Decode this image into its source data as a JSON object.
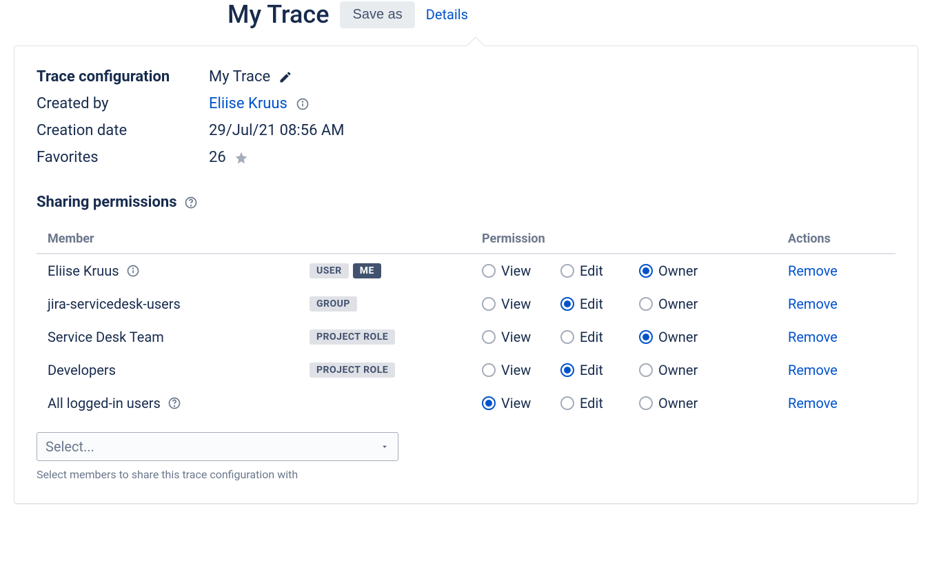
{
  "header": {
    "title": "My Trace",
    "save_as_label": "Save as",
    "details_label": "Details"
  },
  "config": {
    "heading": "Trace configuration",
    "name": "My Trace",
    "created_by_label": "Created by",
    "created_by_value": "Eliise Kruus",
    "creation_date_label": "Creation date",
    "creation_date_value": "29/Jul/21 08:56 AM",
    "favorites_label": "Favorites",
    "favorites_count": "26"
  },
  "sharing": {
    "heading": "Sharing permissions",
    "columns": {
      "member": "Member",
      "permission": "Permission",
      "actions": "Actions"
    },
    "perm_labels": {
      "view": "View",
      "edit": "Edit",
      "owner": "Owner"
    },
    "remove_label": "Remove",
    "rows": [
      {
        "name": "Eliise Kruus",
        "has_info": true,
        "badges": [
          {
            "text": "USER",
            "style": "light"
          },
          {
            "text": "ME",
            "style": "dark"
          }
        ],
        "selected": "owner"
      },
      {
        "name": "jira-servicedesk-users",
        "has_info": false,
        "badges": [
          {
            "text": "GROUP",
            "style": "light"
          }
        ],
        "selected": "edit"
      },
      {
        "name": "Service Desk Team",
        "has_info": false,
        "badges": [
          {
            "text": "PROJECT ROLE",
            "style": "light"
          }
        ],
        "selected": "owner"
      },
      {
        "name": "Developers",
        "has_info": false,
        "badges": [
          {
            "text": "PROJECT ROLE",
            "style": "light"
          }
        ],
        "selected": "edit"
      },
      {
        "name": "All logged-in users",
        "has_info": false,
        "has_help": true,
        "badges": [],
        "selected": "view"
      }
    ],
    "select_placeholder": "Select...",
    "helper_text": "Select members to share this trace configuration with"
  },
  "colors": {
    "text": "#172b4d",
    "link": "#0052cc",
    "muted": "#6b778c",
    "border": "#dfe1e6",
    "badge_light_bg": "#dfe1e6",
    "badge_dark_bg": "#42526e"
  }
}
